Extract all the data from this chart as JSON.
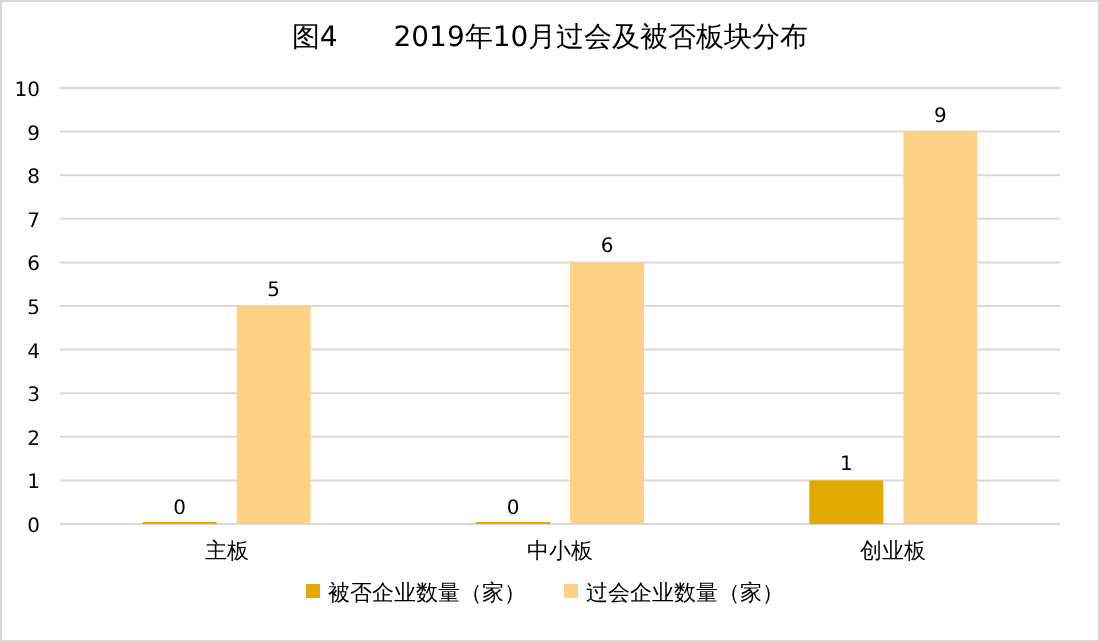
{
  "chart_data": {
    "type": "bar",
    "title": "图4　　2019年10月过会及被否板块分布",
    "categories": [
      "主板",
      "中小板",
      "创业板"
    ],
    "series": [
      {
        "name": "被否企业数量（家）",
        "color": "#e2aa00",
        "values": [
          0,
          0,
          1
        ]
      },
      {
        "name": "过会企业数量（家）",
        "color": "#fed286",
        "values": [
          5,
          6,
          9
        ]
      }
    ],
    "ylim": [
      0,
      10
    ],
    "yticks": [
      0,
      1,
      2,
      3,
      4,
      5,
      6,
      7,
      8,
      9,
      10
    ],
    "grid": "y",
    "legend": "bottom",
    "data_labels": true
  }
}
